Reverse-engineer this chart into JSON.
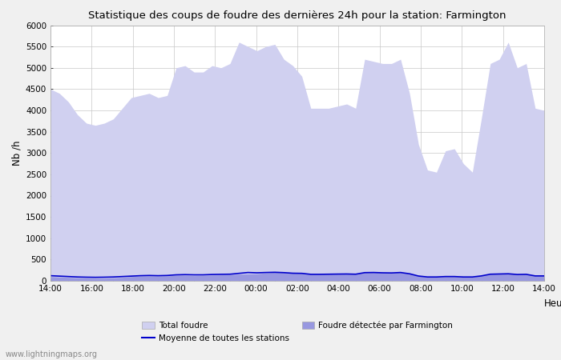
{
  "title": "Statistique des coups de foudre des dernières 24h pour la station: Farmington",
  "ylabel": "Nb /h",
  "xlabel": "Heure",
  "ylim": [
    0,
    6000
  ],
  "yticks": [
    0,
    500,
    1000,
    1500,
    2000,
    2500,
    3000,
    3500,
    4000,
    4500,
    5000,
    5500,
    6000
  ],
  "xtick_labels": [
    "14:00",
    "16:00",
    "18:00",
    "20:00",
    "22:00",
    "00:00",
    "02:00",
    "04:00",
    "06:00",
    "08:00",
    "10:00",
    "12:00",
    "14:00"
  ],
  "background_color": "#f0f0f0",
  "plot_background": "#ffffff",
  "grid_color": "#c8c8c8",
  "fill_total_color": "#d0d0f0",
  "fill_local_color": "#9898e0",
  "line_color": "#0000cc",
  "watermark": "www.lightningmaps.org",
  "legend_total": "Total foudre",
  "legend_moyenne": "Moyenne de toutes les stations",
  "legend_local": "Foudre détectée par Farmington",
  "total_foudre": [
    4500,
    4400,
    4200,
    3900,
    3700,
    3650,
    3700,
    3800,
    4050,
    4300,
    4350,
    4400,
    4300,
    4350,
    5000,
    5050,
    4900,
    4900,
    5050,
    5000,
    5100,
    5600,
    5500,
    5400,
    5500,
    5550,
    5200,
    5050,
    4800,
    4050,
    4050,
    4050,
    4100,
    4150,
    4050,
    5200,
    5150,
    5100,
    5100,
    5200,
    4400,
    3200,
    2600,
    2550,
    3050,
    3100,
    2750,
    2550,
    3800,
    5100,
    5200,
    5600,
    5000,
    5100,
    4050,
    4000
  ],
  "local_foudre": [
    100,
    90,
    80,
    70,
    65,
    60,
    60,
    70,
    80,
    100,
    110,
    115,
    110,
    115,
    130,
    130,
    120,
    125,
    135,
    140,
    150,
    155,
    160,
    165,
    185,
    200,
    195,
    185,
    190,
    160,
    160,
    165,
    170,
    170,
    165,
    200,
    200,
    195,
    190,
    200,
    170,
    110,
    90,
    90,
    100,
    100,
    90,
    90,
    120,
    160,
    165,
    170,
    150,
    155,
    120,
    120
  ],
  "moyenne_foudre": [
    120,
    110,
    100,
    90,
    85,
    82,
    85,
    90,
    100,
    110,
    120,
    125,
    120,
    125,
    140,
    145,
    140,
    140,
    148,
    152,
    155,
    175,
    195,
    188,
    195,
    200,
    192,
    178,
    175,
    152,
    152,
    155,
    158,
    160,
    155,
    192,
    195,
    188,
    185,
    195,
    165,
    112,
    90,
    90,
    100,
    100,
    90,
    90,
    115,
    155,
    160,
    165,
    148,
    152,
    115,
    115
  ]
}
